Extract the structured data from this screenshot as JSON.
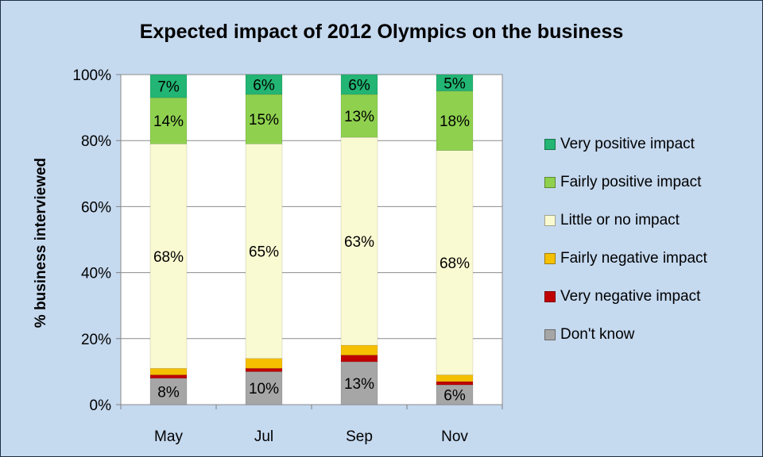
{
  "chart_data": {
    "type": "bar",
    "stacked": true,
    "orientation": "vertical",
    "title": "Expected impact of 2012 Olympics on the business",
    "ylabel": "% business interviewed",
    "xlabel": "",
    "ylim": [
      0,
      100
    ],
    "y_ticks": [
      "0%",
      "20%",
      "40%",
      "60%",
      "80%",
      "100%"
    ],
    "grid": "horizontal",
    "legend_position": "right",
    "categories": [
      "May",
      "Jul",
      "Sep",
      "Nov"
    ],
    "series": [
      {
        "name": "Don't know",
        "color": "#a6a6a6",
        "values": [
          8,
          10,
          13,
          6
        ],
        "labels": [
          "8%",
          "10%",
          "13%",
          "6%"
        ]
      },
      {
        "name": "Very negative impact",
        "color": "#c00000",
        "values": [
          1,
          1,
          2,
          1
        ],
        "labels": [
          "",
          "",
          "",
          ""
        ]
      },
      {
        "name": "Fairly negative impact",
        "color": "#f5c000",
        "values": [
          2,
          3,
          3,
          2
        ],
        "labels": [
          "",
          "",
          "",
          ""
        ]
      },
      {
        "name": "Little or no impact",
        "color": "#fafad2",
        "values": [
          68,
          65,
          63,
          68
        ],
        "labels": [
          "68%",
          "65%",
          "63%",
          "68%"
        ]
      },
      {
        "name": "Fairly positive impact",
        "color": "#8fd14f",
        "values": [
          14,
          15,
          13,
          18
        ],
        "labels": [
          "14%",
          "15%",
          "13%",
          "18%"
        ]
      },
      {
        "name": "Very positive impact",
        "color": "#22b573",
        "values": [
          7,
          6,
          6,
          5
        ],
        "labels": [
          "7%",
          "6%",
          "6%",
          "5%"
        ]
      }
    ],
    "legend_order": [
      5,
      4,
      3,
      2,
      1,
      0
    ]
  }
}
